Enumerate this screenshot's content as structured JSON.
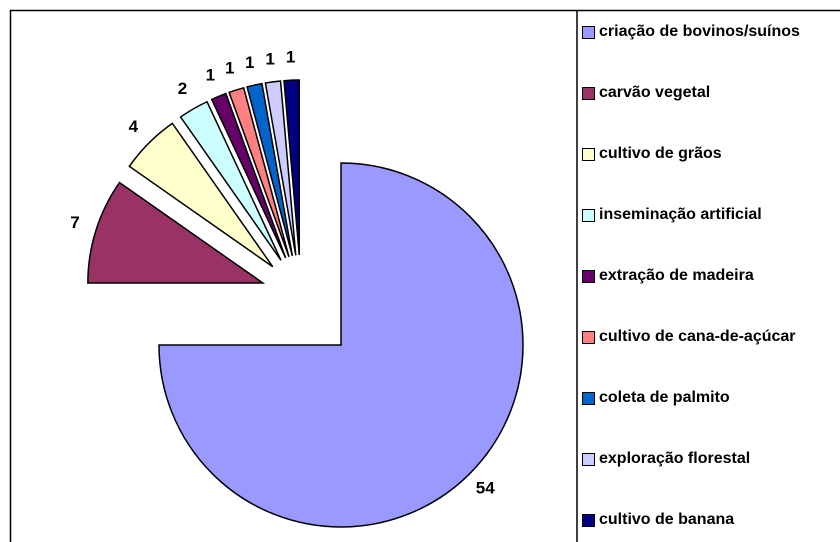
{
  "chart_data": {
    "type": "pie",
    "categories": [
      "criação de bovinos/suínos",
      "carvão vegetal",
      "cultivo de grãos",
      "inseminação artificial",
      "extração de madeira",
      "cultivo de cana-de-açúcar",
      "coleta de palmito",
      "exploração florestal",
      "cultivo de banana"
    ],
    "values": [
      54,
      7,
      4,
      2,
      1,
      1,
      1,
      1,
      1
    ],
    "colors": [
      "#9999ff",
      "#993366",
      "#ffffcc",
      "#ccffff",
      "#660066",
      "#ff8080",
      "#0066cc",
      "#ccccff",
      "#000080"
    ],
    "legend": "right"
  }
}
